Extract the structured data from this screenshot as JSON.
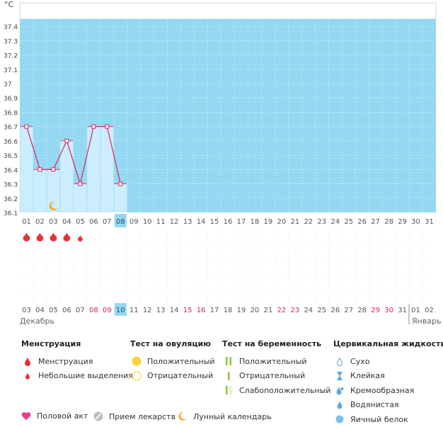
{
  "chart_data": {
    "type": "line",
    "ylabel": "°C",
    "yticks": [
      "37.4",
      "37.3",
      "37.2",
      "37.1",
      "37",
      "36.9",
      "36.8",
      "36.7",
      "36.6",
      "36.5",
      "36.4",
      "36.3",
      "36.2",
      "36.1"
    ],
    "ylim": [
      36.1,
      37.45
    ],
    "cycle_days": [
      "01",
      "02",
      "03",
      "04",
      "05",
      "06",
      "07",
      "08",
      "09",
      "10",
      "11",
      "12",
      "13",
      "14",
      "15",
      "16",
      "17",
      "18",
      "19",
      "20",
      "21",
      "22",
      "23",
      "24",
      "25",
      "26",
      "27",
      "28",
      "29",
      "30",
      "31"
    ],
    "current_day": "08",
    "temperature_series": {
      "days": [
        "01",
        "02",
        "03",
        "04",
        "05",
        "06",
        "07",
        "08"
      ],
      "values": [
        36.7,
        36.4,
        36.4,
        36.6,
        36.3,
        36.7,
        36.7,
        36.3
      ]
    },
    "menstruation": [
      "heavy",
      "heavy",
      "heavy",
      "heavy",
      "light"
    ],
    "moon_day": "03",
    "dates": [
      "03",
      "04",
      "05",
      "06",
      "07",
      "08",
      "09",
      "10",
      "11",
      "12",
      "13",
      "14",
      "15",
      "16",
      "17",
      "18",
      "19",
      "20",
      "21",
      "22",
      "23",
      "24",
      "25",
      "26",
      "27",
      "28",
      "29",
      "30",
      "31",
      "01",
      "02"
    ],
    "weekend_dates": [
      "08",
      "09",
      "15",
      "16",
      "22",
      "23",
      "29",
      "30"
    ],
    "today_date": "10",
    "month_start": "Декабрь",
    "month_next": "Январь",
    "grid": true,
    "colors": {
      "plot_bg": "#94d8f2",
      "bar": "#cbedfd",
      "line": "#e0205c",
      "blood": "#e53238",
      "highlight": "#94d8f2",
      "weekend": "#e0205c"
    }
  },
  "legend": {
    "menstruation": {
      "title": "Менструация",
      "items": [
        "Менструация",
        "Небольшие выделения"
      ]
    },
    "ovulation_test": {
      "title": "Тест на овуляцию",
      "items": [
        "Положительный",
        "Отрицательный"
      ]
    },
    "pregnancy_test": {
      "title": "Тест на беременность",
      "items": [
        "Положительный",
        "Отрицательный",
        "Слабоположительный"
      ]
    },
    "cervical_fluid": {
      "title": "Цервикальная жидкость",
      "items": [
        "Сухо",
        "Клейкая",
        "Кремообразная",
        "Водянистая",
        "Яичный белок"
      ]
    }
  },
  "bottom": {
    "intercourse": "Половой акт",
    "medication": "Прием лекарств",
    "lunar": "Лунный календарь"
  },
  "icons": {
    "intercourse": "heart-icon",
    "medication": "pill-icon",
    "lunar": "moon-icon",
    "blood": "blood-drop-icon",
    "ovulation_pos": "filled-circle-icon",
    "ovulation_neg": "empty-circle-icon",
    "preg_pos": "double-stripe-icon",
    "preg_neg": "single-stripe-icon",
    "preg_weak": "faint-stripe-icon",
    "fluid": "fluid-drop-icon"
  }
}
